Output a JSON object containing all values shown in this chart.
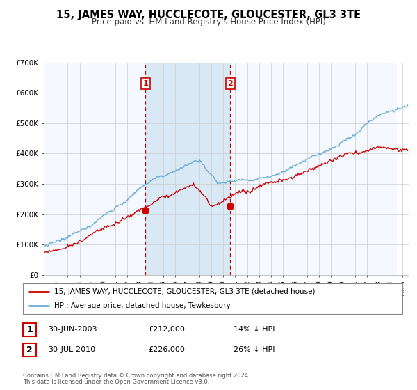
{
  "title": "15, JAMES WAY, HUCCLECOTE, GLOUCESTER, GL3 3TE",
  "subtitle": "Price paid vs. HM Land Registry's House Price Index (HPI)",
  "legend_line1": "15, JAMES WAY, HUCCLECOTE, GLOUCESTER, GL3 3TE (detached house)",
  "legend_line2": "HPI: Average price, detached house, Tewkesbury",
  "table_rows": [
    {
      "num": "1",
      "date": "30-JUN-2003",
      "price": "£212,000",
      "hpi": "14% ↓ HPI"
    },
    {
      "num": "2",
      "date": "30-JUL-2010",
      "price": "£226,000",
      "hpi": "26% ↓ HPI"
    }
  ],
  "footnote1": "Contains HM Land Registry data © Crown copyright and database right 2024.",
  "footnote2": "This data is licensed under the Open Government Licence v3.0.",
  "sale1_year": 2003.5,
  "sale1_price": 212000,
  "sale2_year": 2010.583,
  "sale2_price": 226000,
  "future_year": 2024.5,
  "xlim_start": 1995.0,
  "xlim_end": 2025.5,
  "ylim": [
    0,
    700000
  ],
  "yticks": [
    0,
    100000,
    200000,
    300000,
    400000,
    500000,
    600000,
    700000
  ],
  "hpi_color": "#6baed6",
  "price_color": "#cc0000",
  "dashed_color": "#cc0000",
  "band_color": "#d9e8f5",
  "hatch_color": "#cccccc",
  "background_color": "#f5f8ff",
  "grid_color": "#cccccc"
}
